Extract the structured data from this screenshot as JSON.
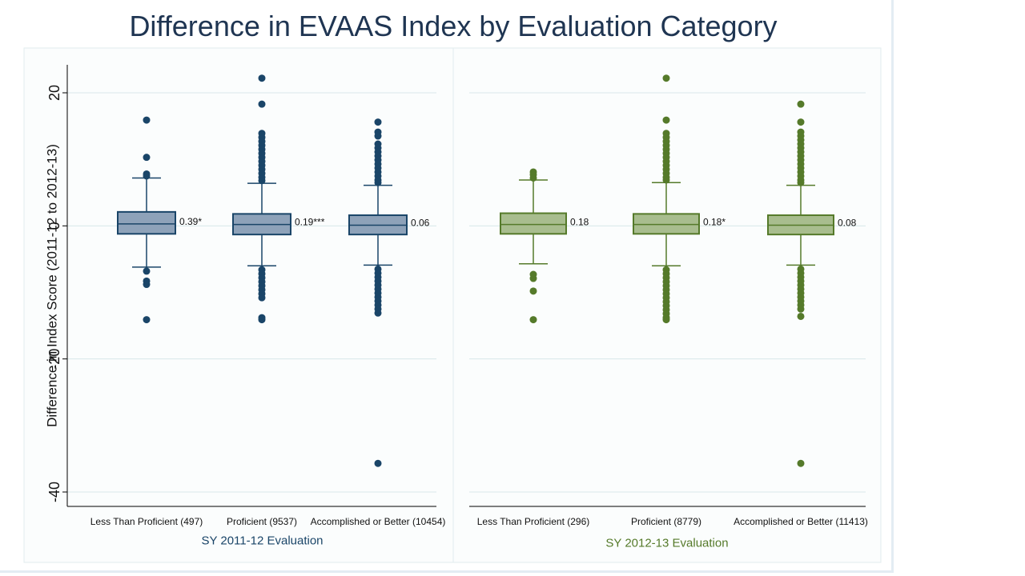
{
  "title": "Difference in EVAAS Index by Evaluation Category",
  "colors": {
    "title": "#1f3552",
    "left_fill": "#8ea2b9",
    "left_line": "#1a4568",
    "left_dot": "#1a4568",
    "right_fill": "#a8bd8e",
    "right_line": "#557a2a",
    "right_dot": "#557a2a",
    "grid": "#d8e8ea",
    "plot_bg": "#fbfdfd",
    "panel_border": "#e2ecee"
  },
  "chart_data": {
    "type": "box",
    "ylabel": "Difference in Index Score (2011-12 to 2012-13)",
    "ylim": [
      -42,
      24
    ],
    "yticks": [
      20,
      0,
      -20,
      -40
    ],
    "grid": true,
    "panels": [
      {
        "xlabel": "SY 2011-12 Evaluation",
        "color": "left",
        "boxes": [
          {
            "label": "Less Than Proficient (497)",
            "q1": -1.2,
            "median": 0.3,
            "q3": 2.1,
            "whisker_low": -6.2,
            "whisker_high": 7.2,
            "annotation": "0.39*",
            "outliers": [
              15.9,
              10.3,
              7.8,
              7.5,
              -6.8,
              -8.3,
              -8.8,
              -14.1
            ]
          },
          {
            "label": "Proficient (9537)",
            "q1": -1.3,
            "median": 0.2,
            "q3": 1.8,
            "whisker_low": -6.0,
            "whisker_high": 6.4,
            "annotation": "0.19***",
            "outliers": [
              22.2,
              18.3,
              13.9,
              13.3,
              12.7,
              12.1,
              11.5,
              10.9,
              10.3,
              9.7,
              9.1,
              8.5,
              7.9,
              7.3,
              6.8,
              -6.6,
              -7.2,
              -7.8,
              -8.4,
              -9.0,
              -9.6,
              -10.2,
              -10.8,
              -13.8,
              -14.1
            ]
          },
          {
            "label": "Accomplished or Better (10454)",
            "q1": -1.3,
            "median": 0.1,
            "q3": 1.6,
            "whisker_low": -5.9,
            "whisker_high": 6.1,
            "annotation": "0.06",
            "outliers": [
              15.6,
              14.1,
              13.5,
              12.3,
              11.7,
              11.1,
              10.5,
              9.9,
              9.3,
              8.7,
              8.1,
              7.5,
              6.9,
              6.5,
              -6.5,
              -7.1,
              -7.7,
              -8.3,
              -8.9,
              -9.5,
              -10.1,
              -10.7,
              -11.3,
              -11.9,
              -12.5,
              -13.1,
              -35.7
            ]
          }
        ]
      },
      {
        "xlabel": "SY 2012-13 Evaluation",
        "color": "right",
        "boxes": [
          {
            "label": "Less Than Proficient (296)",
            "q1": -1.2,
            "median": 0.2,
            "q3": 1.9,
            "whisker_low": -5.7,
            "whisker_high": 6.9,
            "annotation": "0.18",
            "outliers": [
              8.1,
              7.7,
              7.2,
              -7.3,
              -7.9,
              -9.8,
              -14.1
            ]
          },
          {
            "label": "Proficient (8779)",
            "q1": -1.2,
            "median": 0.2,
            "q3": 1.8,
            "whisker_low": -6.0,
            "whisker_high": 6.5,
            "annotation": "0.18*",
            "outliers": [
              22.2,
              15.9,
              13.9,
              13.3,
              12.7,
              12.1,
              11.5,
              10.9,
              10.3,
              9.7,
              9.1,
              8.5,
              7.9,
              7.3,
              6.9,
              -6.6,
              -7.2,
              -7.8,
              -8.4,
              -9.0,
              -9.6,
              -10.2,
              -10.8,
              -11.4,
              -12.0,
              -12.6,
              -13.2,
              -13.8,
              -14.1
            ]
          },
          {
            "label": "Accomplished or Better (11413)",
            "q1": -1.3,
            "median": 0.1,
            "q3": 1.6,
            "whisker_low": -5.9,
            "whisker_high": 6.1,
            "annotation": "0.08",
            "outliers": [
              18.3,
              15.6,
              14.1,
              13.5,
              12.9,
              12.3,
              11.7,
              11.1,
              10.5,
              9.9,
              9.3,
              8.7,
              8.1,
              7.5,
              6.9,
              6.5,
              -6.5,
              -7.1,
              -7.7,
              -8.3,
              -8.9,
              -9.5,
              -10.1,
              -10.7,
              -11.3,
              -11.9,
              -12.5,
              -13.6,
              -35.7
            ]
          }
        ]
      }
    ]
  }
}
